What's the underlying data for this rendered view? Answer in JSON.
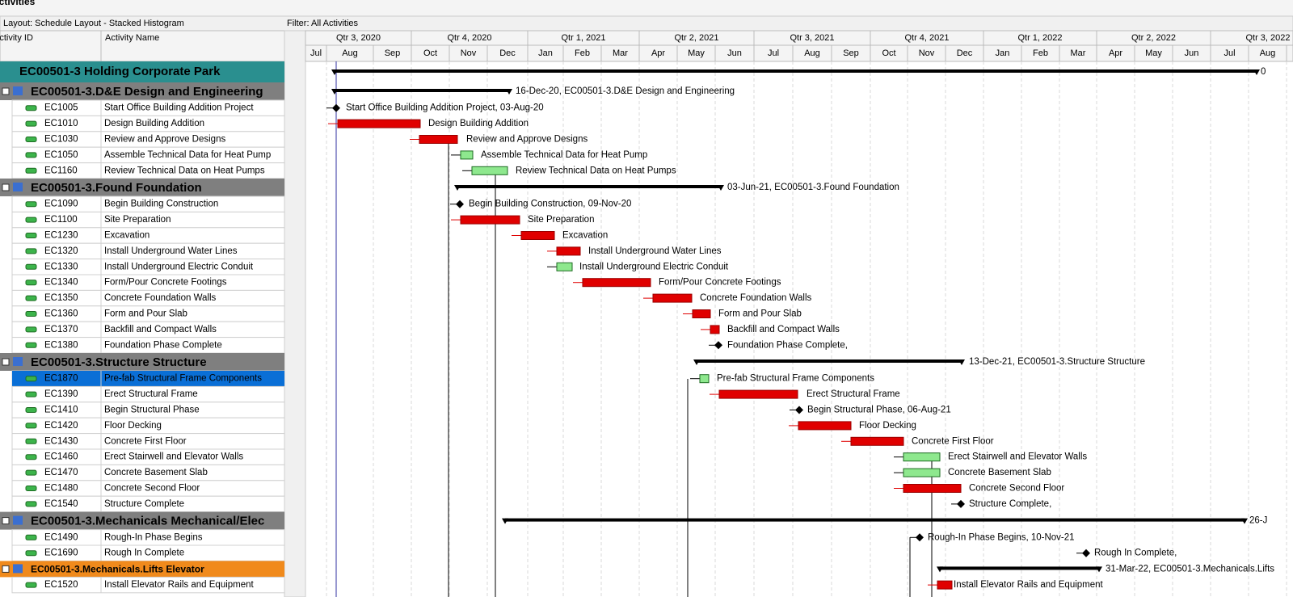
{
  "header": {
    "title": "Activities",
    "layout": "Layout: Schedule Layout - Stacked Histogram",
    "filter": "Filter: All Activities"
  },
  "columns": {
    "id": "Activity ID",
    "name": "Activity Name"
  },
  "timescale": {
    "quarters": [
      "Qtr 3, 2020",
      "Qtr 4, 2020",
      "Qtr 1, 2021",
      "Qtr 2, 2021",
      "Qtr 3, 2021",
      "Qtr 4, 2021",
      "Qtr 1, 2022",
      "Qtr 2, 2022",
      "Qtr 3, 2022"
    ],
    "months": [
      "Jul",
      "Aug",
      "Sep",
      "Oct",
      "Nov",
      "Dec",
      "Jan",
      "Feb",
      "Mar",
      "Apr",
      "May",
      "Jun",
      "Jul",
      "Aug",
      "Sep",
      "Oct",
      "Nov",
      "Dec",
      "Jan",
      "Feb",
      "Mar",
      "Apr",
      "May",
      "Jun",
      "Jul",
      "Aug"
    ]
  },
  "rows": [
    {
      "label": "EC00501-3 Holding Corporate Park",
      "bar_label": "0"
    },
    {
      "label": "EC00501-3.D&E  Design and Engineering",
      "bar_label": "16-Dec-20, EC00501-3.D&E  Design and Engineering"
    },
    {
      "id": "EC1005",
      "name": "Start Office Building Addition Project",
      "bar_label": "Start Office Building Addition Project, 03-Aug-20"
    },
    {
      "id": "EC1010",
      "name": "Design Building Addition",
      "bar_label": "Design Building Addition"
    },
    {
      "id": "EC1030",
      "name": "Review and Approve Designs",
      "bar_label": "Review and Approve Designs"
    },
    {
      "id": "EC1050",
      "name": "Assemble Technical Data for Heat Pump",
      "bar_label": "Assemble Technical Data for Heat Pump"
    },
    {
      "id": "EC1160",
      "name": "Review Technical Data on Heat Pumps",
      "bar_label": "Review Technical Data on Heat Pumps"
    },
    {
      "label": "EC00501-3.Found  Foundation",
      "bar_label": "03-Jun-21, EC00501-3.Found  Foundation"
    },
    {
      "id": "EC1090",
      "name": "Begin Building Construction",
      "bar_label": "Begin Building Construction, 09-Nov-20"
    },
    {
      "id": "EC1100",
      "name": "Site Preparation",
      "bar_label": "Site Preparation"
    },
    {
      "id": "EC1230",
      "name": "Excavation",
      "bar_label": "Excavation"
    },
    {
      "id": "EC1320",
      "name": "Install Underground Water Lines",
      "bar_label": "Install Underground Water Lines"
    },
    {
      "id": "EC1330",
      "name": "Install Underground Electric Conduit",
      "bar_label": "Install Underground Electric Conduit"
    },
    {
      "id": "EC1340",
      "name": "Form/Pour Concrete Footings",
      "bar_label": "Form/Pour Concrete Footings"
    },
    {
      "id": "EC1350",
      "name": "Concrete Foundation Walls",
      "bar_label": "Concrete Foundation Walls"
    },
    {
      "id": "EC1360",
      "name": "Form and Pour Slab",
      "bar_label": "Form and Pour Slab"
    },
    {
      "id": "EC1370",
      "name": "Backfill and Compact Walls",
      "bar_label": "Backfill and Compact Walls"
    },
    {
      "id": "EC1380",
      "name": "Foundation Phase Complete",
      "bar_label": "Foundation Phase Complete,"
    },
    {
      "label": "EC00501-3.Structure  Structure",
      "bar_label": "13-Dec-21, EC00501-3.Structure  Structure"
    },
    {
      "id": "EC1870",
      "name": "Pre-fab Structural Frame Components",
      "bar_label": "Pre-fab Structural Frame Components"
    },
    {
      "id": "EC1390",
      "name": "Erect Structural Frame",
      "bar_label": "Erect Structural Frame"
    },
    {
      "id": "EC1410",
      "name": "Begin Structural Phase",
      "bar_label": "Begin Structural Phase, 06-Aug-21"
    },
    {
      "id": "EC1420",
      "name": "Floor Decking",
      "bar_label": "Floor Decking"
    },
    {
      "id": "EC1430",
      "name": "Concrete First Floor",
      "bar_label": "Concrete First Floor"
    },
    {
      "id": "EC1460",
      "name": "Erect Stairwell and Elevator Walls",
      "bar_label": "Erect Stairwell and Elevator Walls"
    },
    {
      "id": "EC1470",
      "name": "Concrete Basement Slab",
      "bar_label": "Concrete Basement Slab"
    },
    {
      "id": "EC1480",
      "name": "Concrete Second Floor",
      "bar_label": "Concrete Second Floor"
    },
    {
      "id": "EC1540",
      "name": "Structure Complete",
      "bar_label": "Structure Complete,"
    },
    {
      "label": "EC00501-3.Mechanicals  Mechanical/Elec",
      "bar_label": "26-J"
    },
    {
      "id": "EC1490",
      "name": "Rough-In Phase Begins",
      "bar_label": "Rough-In Phase Begins, 10-Nov-21"
    },
    {
      "id": "EC1690",
      "name": "Rough In Complete",
      "bar_label": "Rough In Complete,"
    },
    {
      "label": "EC00501-3.Mechanicals.Lifts  Elevator",
      "bar_label": "31-Mar-22, EC00501-3.Mechanicals.Lifts"
    },
    {
      "id": "EC1520",
      "name": "Install Elevator Rails and Equipment",
      "bar_label": "Install Elevator Rails and Equipment"
    }
  ]
}
